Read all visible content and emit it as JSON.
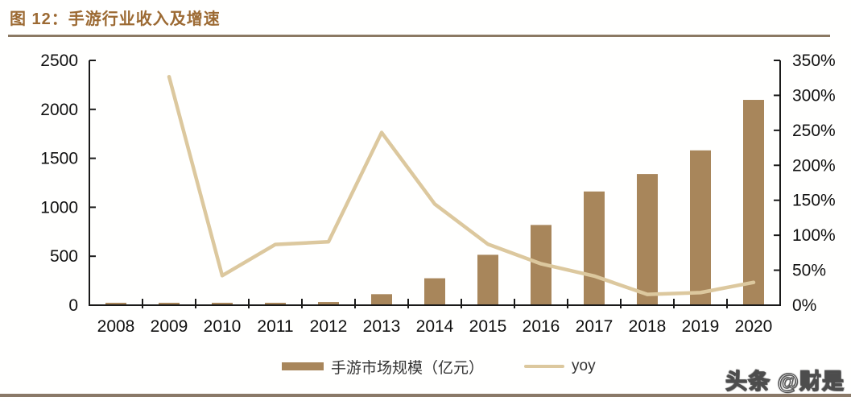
{
  "figure": {
    "title": "图 12：手游行业收入及增速",
    "watermark": "头条 @财是"
  },
  "legend": {
    "bar_label": "手游市场规模（亿元）",
    "line_label": "yoy"
  },
  "colors": {
    "bar": "#A8865B",
    "line": "#DCC89E",
    "title": "#9C6A33",
    "rule": "#8B7963",
    "bottom_rule": "#8A7968",
    "axis": "#1A1A1A",
    "label": "#111111"
  },
  "chart_data": {
    "type": "bar",
    "title": "手游行业收入及增速",
    "categories": [
      "2008",
      "2009",
      "2010",
      "2011",
      "2012",
      "2013",
      "2014",
      "2015",
      "2016",
      "2017",
      "2018",
      "2019",
      "2020"
    ],
    "series": [
      {
        "name": "手游市场规模（亿元）",
        "type": "bar",
        "axis": "left",
        "values": [
          1.5,
          6.4,
          9.1,
          17.0,
          32.4,
          112.4,
          274.9,
          514.6,
          819.2,
          1161.2,
          1339.6,
          1581.1,
          2096.8
        ]
      },
      {
        "name": "yoy",
        "type": "line",
        "axis": "right",
        "values": [
          null,
          326.7,
          42.2,
          86.8,
          90.6,
          246.9,
          144.6,
          87.2,
          59.2,
          41.7,
          15.4,
          18.0,
          32.6
        ]
      }
    ],
    "left_axis": {
      "min": 0,
      "max": 2500,
      "step": 500,
      "tick_labels": [
        "0",
        "500",
        "1000",
        "1500",
        "2000",
        "2500"
      ]
    },
    "right_axis": {
      "min": 0,
      "max": 350,
      "step": 50,
      "suffix": "%",
      "tick_labels": [
        "0%",
        "50%",
        "100%",
        "150%",
        "200%",
        "250%",
        "300%",
        "350%"
      ]
    },
    "xlabel": "",
    "ylabel_left": "亿元",
    "ylabel_right": "%",
    "grid": false,
    "legend_position": "bottom"
  }
}
